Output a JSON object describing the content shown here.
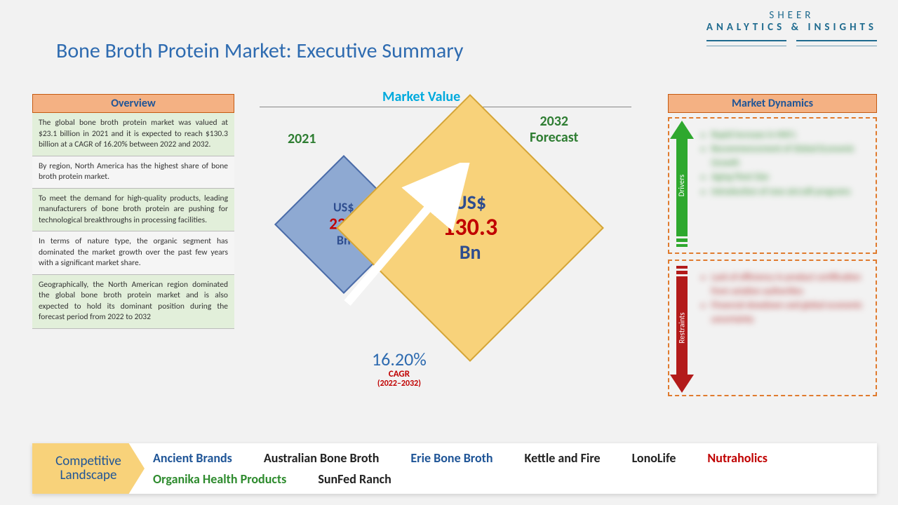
{
  "logo": {
    "line1": "SHEER",
    "line2": "ANALYTICS & INSIGHTS"
  },
  "title": "Bone Broth Protein Market: Executive Summary",
  "overview": {
    "header": "Overview",
    "items": [
      "The global bone broth protein market was valued at $23.1 billion in 2021 and it is expected to reach $130.3 billion at a CAGR of 16.20% between 2022 and 2032.",
      "By region, North America has the highest share of bone broth protein market.",
      "To meet the demand for high-quality products, leading manufacturers of bone broth protein are pushing for technological breakthroughs in processing facilities.",
      "In terms of nature type, the organic segment has dominated the market growth over the past few years with a significant market share.",
      "Geographically, the North American region dominated the global bone broth protein market and is also expected to hold its dominant position during the forecast period from 2022 to 2032"
    ]
  },
  "marketValue": {
    "label": "Market Value",
    "year2021": "2021",
    "year2032_line1": "2032",
    "year2032_line2": "Forecast",
    "small": {
      "usd": "US$",
      "value": "23.1",
      "bn": "Bn",
      "fill": "#8ea9d2",
      "border": "#4a6ba8",
      "usd_fs": 18,
      "val_fs": 23,
      "bn_fs": 18
    },
    "big": {
      "usd": "US$",
      "value": "130.3",
      "bn": "Bn",
      "fill": "#f8d27a",
      "border": "#d4a537",
      "usd_fs": 28,
      "val_fs": 34,
      "bn_fs": 28
    },
    "cagr": {
      "value": "16.20%",
      "label": "CAGR",
      "period": "(2022–2032)"
    }
  },
  "dynamics": {
    "header": "Market Dynamics",
    "drivers": {
      "label": "Drivers",
      "color": "#2ea82e",
      "items": [
        "Rapid increase in HNI's",
        "Recommencement of Global Economic Growth",
        "Aging Fleet Size",
        "Introduction of new aircraft programs"
      ]
    },
    "restraints": {
      "label": "Restraints",
      "color": "#b31b1b",
      "items": [
        "Lack of efficiency in product certification from aviation authorities",
        "Financial slowdown and global economic uncertainty"
      ]
    }
  },
  "competitive": {
    "label_l1": "Competitive",
    "label_l2": "Landscape",
    "brands": [
      {
        "name": "Ancient Brands",
        "color": "#1f5597"
      },
      {
        "name": "Australian Bone Broth",
        "color": "#222"
      },
      {
        "name": "Erie Bone Broth",
        "color": "#1f5597"
      },
      {
        "name": "Kettle and Fire",
        "color": "#222"
      },
      {
        "name": "LonoLife",
        "color": "#222"
      },
      {
        "name": "Nutraholics",
        "color": "#c00000"
      },
      {
        "name": "Organika Health Products",
        "color": "#2e8b2e"
      },
      {
        "name": "SunFed Ranch",
        "color": "#222"
      }
    ]
  },
  "colors": {
    "background": "#f2f2f2",
    "title": "#2e6bb0",
    "header_bg": "#f4b183",
    "header_border": "#c55a11",
    "header_text": "#1f5597",
    "ov_even": "#e2efda",
    "ov_odd": "#f5f5f5"
  }
}
